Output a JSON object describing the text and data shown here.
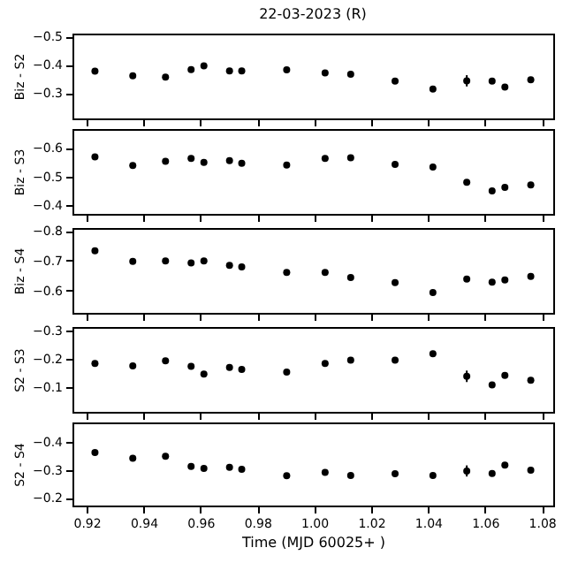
{
  "chart_data": [
    {
      "type": "scatter",
      "title": "22-03-2023  (R)",
      "ylabel": "Biz - S2",
      "color": "#000000",
      "marker": "circle",
      "tick_labels": "y",
      "x": [
        0.9229,
        0.9362,
        0.9477,
        0.9567,
        0.9612,
        0.9702,
        0.9745,
        0.9903,
        1.0038,
        1.0128,
        1.0284,
        1.0417,
        1.0536,
        1.0625,
        1.067,
        1.0761
      ],
      "values": [
        -0.377,
        -0.361,
        -0.356,
        -0.383,
        -0.396,
        -0.378,
        -0.378,
        -0.382,
        -0.371,
        -0.366,
        -0.342,
        -0.314,
        -0.343,
        -0.342,
        -0.321,
        -0.347
      ],
      "errors": [
        0.008,
        0.007,
        0.007,
        0.007,
        0.007,
        0.007,
        0.007,
        0.008,
        0.007,
        0.007,
        0.007,
        0.007,
        0.02,
        0.007,
        0.007,
        0.008
      ],
      "xlim": [
        0.915,
        1.084
      ],
      "xticks": [
        0.92,
        0.94,
        0.96,
        0.98,
        1.0,
        1.02,
        1.04,
        1.06,
        1.08
      ],
      "ylim": [
        -0.21,
        -0.51
      ],
      "yticks": [
        -0.5,
        -0.4,
        -0.3
      ]
    },
    {
      "type": "scatter",
      "ylabel": "Biz - S3",
      "color": "#000000",
      "marker": "circle",
      "tick_labels": "y",
      "x": [
        0.9229,
        0.9362,
        0.9477,
        0.9567,
        0.9612,
        0.9702,
        0.9745,
        0.9903,
        1.0038,
        1.0128,
        1.0284,
        1.0417,
        1.0536,
        1.0625,
        1.067,
        1.0761
      ],
      "values": [
        -0.568,
        -0.538,
        -0.553,
        -0.563,
        -0.549,
        -0.555,
        -0.546,
        -0.54,
        -0.563,
        -0.565,
        -0.542,
        -0.533,
        -0.48,
        -0.45,
        -0.462,
        -0.471
      ],
      "errors": [
        0.008,
        0.008,
        0.007,
        0.007,
        0.007,
        0.007,
        0.007,
        0.009,
        0.007,
        0.007,
        0.007,
        0.009,
        0.009,
        0.007,
        0.008,
        0.008
      ],
      "xlim": [
        0.915,
        1.084
      ],
      "xticks": [
        0.92,
        0.94,
        0.96,
        0.98,
        1.0,
        1.02,
        1.04,
        1.06,
        1.08
      ],
      "ylim": [
        -0.37,
        -0.665
      ],
      "yticks": [
        -0.6,
        -0.5,
        -0.4
      ]
    },
    {
      "type": "scatter",
      "ylabel": "Biz - S4",
      "color": "#000000",
      "marker": "circle",
      "tick_labels": "y",
      "x": [
        0.9229,
        0.9362,
        0.9477,
        0.9567,
        0.9612,
        0.9702,
        0.9745,
        0.9903,
        1.0038,
        1.0128,
        1.0284,
        1.0417,
        1.0536,
        1.0625,
        1.067,
        1.0761
      ],
      "values": [
        -0.733,
        -0.697,
        -0.699,
        -0.692,
        -0.699,
        -0.684,
        -0.679,
        -0.66,
        -0.66,
        -0.643,
        -0.626,
        -0.593,
        -0.638,
        -0.628,
        -0.635,
        -0.647
      ],
      "errors": [
        0.009,
        0.008,
        0.008,
        0.007,
        0.007,
        0.007,
        0.007,
        0.008,
        0.007,
        0.007,
        0.007,
        0.007,
        0.008,
        0.007,
        0.008,
        0.008
      ],
      "xlim": [
        0.915,
        1.084
      ],
      "xticks": [
        0.92,
        0.94,
        0.96,
        0.98,
        1.0,
        1.02,
        1.04,
        1.06,
        1.08
      ],
      "ylim": [
        -0.525,
        -0.809
      ],
      "yticks": [
        -0.8,
        -0.7,
        -0.6
      ]
    },
    {
      "type": "scatter",
      "ylabel": "S2 - S3",
      "color": "#000000",
      "marker": "circle",
      "tick_labels": "y",
      "x": [
        0.9229,
        0.9362,
        0.9477,
        0.9567,
        0.9612,
        0.9702,
        0.9745,
        0.9903,
        1.0038,
        1.0128,
        1.0284,
        1.0417,
        1.0536,
        1.0625,
        1.067,
        1.0761
      ],
      "values": [
        -0.184,
        -0.175,
        -0.193,
        -0.174,
        -0.147,
        -0.17,
        -0.163,
        -0.154,
        -0.184,
        -0.195,
        -0.195,
        -0.218,
        -0.139,
        -0.109,
        -0.142,
        -0.125
      ],
      "errors": [
        0.009,
        0.009,
        0.008,
        0.008,
        0.008,
        0.008,
        0.008,
        0.01,
        0.008,
        0.007,
        0.007,
        0.008,
        0.02,
        0.008,
        0.008,
        0.008
      ],
      "xlim": [
        0.915,
        1.084
      ],
      "xticks": [
        0.92,
        0.94,
        0.96,
        0.98,
        1.0,
        1.02,
        1.04,
        1.06,
        1.08
      ],
      "ylim": [
        -0.015,
        -0.311
      ],
      "yticks": [
        -0.3,
        -0.2,
        -0.1
      ]
    },
    {
      "type": "scatter",
      "ylabel": "S2 - S4",
      "xlabel": "Time (MJD 60025+ )",
      "color": "#000000",
      "marker": "circle",
      "x": [
        0.9229,
        0.9362,
        0.9477,
        0.9567,
        0.9612,
        0.9702,
        0.9745,
        0.9903,
        1.0038,
        1.0128,
        1.0284,
        1.0417,
        1.0536,
        1.0625,
        1.067,
        1.0761
      ],
      "values": [
        -0.363,
        -0.343,
        -0.35,
        -0.313,
        -0.306,
        -0.31,
        -0.303,
        -0.28,
        -0.292,
        -0.281,
        -0.287,
        -0.281,
        -0.297,
        -0.288,
        -0.318,
        -0.3
      ],
      "errors": [
        0.01,
        0.008,
        0.008,
        0.007,
        0.007,
        0.008,
        0.008,
        0.01,
        0.007,
        0.007,
        0.007,
        0.007,
        0.02,
        0.008,
        0.008,
        0.008
      ],
      "xlim": [
        0.915,
        1.084
      ],
      "xticks": [
        0.92,
        0.94,
        0.96,
        0.98,
        {
          "value": 1.0,
          "label": "1.00"
        },
        1.02,
        1.04,
        1.06,
        1.08
      ],
      "ylim": [
        -0.173,
        -0.471
      ],
      "yticks": [
        -0.4,
        -0.3,
        -0.2
      ]
    }
  ]
}
